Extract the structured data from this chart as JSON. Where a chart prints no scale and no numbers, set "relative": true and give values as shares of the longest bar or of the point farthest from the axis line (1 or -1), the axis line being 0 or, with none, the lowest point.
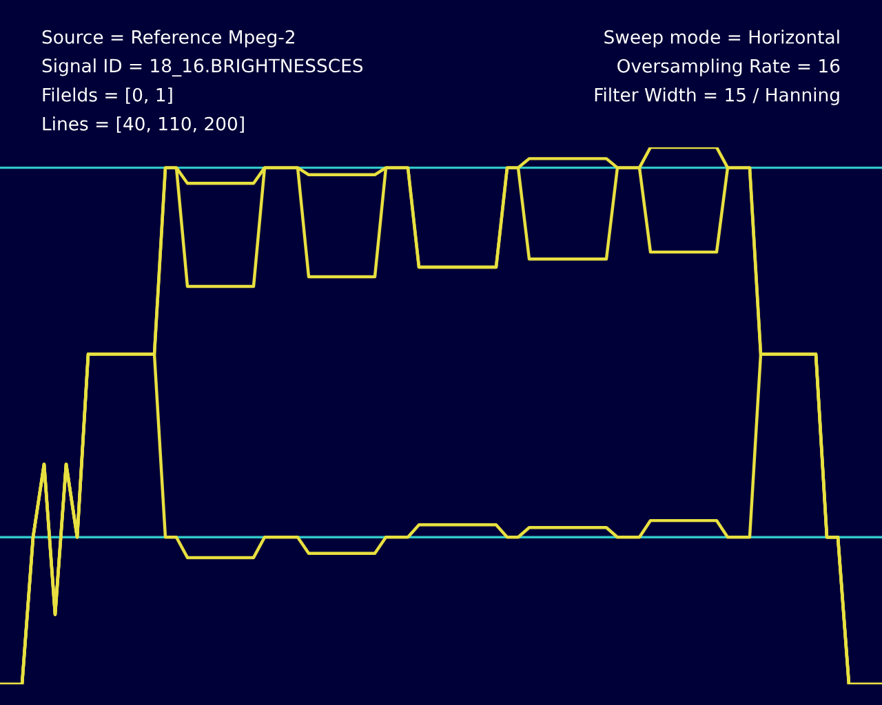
{
  "chart_data": {
    "type": "line",
    "relative": true,
    "legend": false,
    "marker": "none",
    "line_style": "solid",
    "annotations": [
      "Source = Reference Mpeg-2",
      "Signal ID = 18_16.BRIGHTNESSCES",
      "Filelds = [0, 1]",
      "Lines = [40, 110, 200]",
      "Sweep mode = Horizontal",
      "Oversampling Rate = 16",
      "Filter Width = 15 / Hanning"
    ],
    "categories": [
      null,
      null,
      null,
      null,
      null,
      null,
      null,
      null,
      null,
      null,
      null,
      null,
      null,
      null,
      null,
      null,
      null,
      null,
      null,
      null,
      null,
      null,
      null,
      null,
      null,
      null,
      null,
      null,
      null,
      null,
      null,
      null,
      null,
      null,
      null,
      null,
      null,
      null,
      null,
      null,
      null,
      null,
      null,
      null,
      null,
      null,
      null,
      null,
      null,
      null,
      null,
      null,
      null,
      null,
      null,
      null,
      null,
      null,
      null,
      null,
      null,
      null,
      null,
      null,
      null,
      null,
      null,
      null,
      null,
      null,
      null,
      null,
      null,
      null,
      null,
      null,
      null,
      null,
      null,
      null,
      null
    ],
    "ref_lines": [
      {
        "axis": "y",
        "value": 0.274,
        "color": "#30c8c8"
      },
      {
        "axis": "y",
        "value": 0.962,
        "color": "#30c8c8"
      }
    ],
    "series": [
      {
        "color": "#e8e040",
        "values": [
          0,
          0,
          0,
          0.274,
          0.41,
          0.13,
          0.41,
          0.274,
          0.615,
          0.615,
          0.615,
          0.615,
          0.615,
          0.615,
          0.615,
          0.962,
          0.962,
          0.933,
          0.933,
          0.933,
          0.933,
          0.933,
          0.933,
          0.933,
          0.962,
          0.962,
          0.962,
          0.962,
          0.949,
          0.949,
          0.949,
          0.949,
          0.949,
          0.949,
          0.949,
          0.962,
          0.962,
          0.962,
          0.777,
          0.777,
          0.777,
          0.777,
          0.777,
          0.777,
          0.777,
          0.777,
          0.962,
          0.962,
          0.979,
          0.979,
          0.979,
          0.979,
          0.979,
          0.979,
          0.979,
          0.979,
          0.962,
          0.962,
          0.962,
          1.0,
          1.0,
          1.0,
          1.0,
          1.0,
          1.0,
          1.0,
          0.962,
          0.962,
          0.962,
          0.615,
          0.615,
          0.615,
          0.615,
          0.615,
          0.615,
          0.274,
          0.274,
          0,
          0,
          0,
          0
        ]
      },
      {
        "color": "#e8e040",
        "values": [
          0,
          0,
          0,
          0.274,
          0.41,
          0.13,
          0.41,
          0.274,
          0.615,
          0.615,
          0.615,
          0.615,
          0.615,
          0.615,
          0.615,
          0.962,
          0.962,
          0.741,
          0.741,
          0.741,
          0.741,
          0.741,
          0.741,
          0.741,
          0.962,
          0.962,
          0.962,
          0.962,
          0.759,
          0.759,
          0.759,
          0.759,
          0.759,
          0.759,
          0.759,
          0.962,
          0.962,
          0.962,
          0.777,
          0.777,
          0.777,
          0.777,
          0.777,
          0.777,
          0.777,
          0.777,
          0.962,
          0.962,
          0.792,
          0.792,
          0.792,
          0.792,
          0.792,
          0.792,
          0.792,
          0.792,
          0.962,
          0.962,
          0.962,
          0.805,
          0.805,
          0.805,
          0.805,
          0.805,
          0.805,
          0.805,
          0.962,
          0.962,
          0.962,
          0.615,
          0.615,
          0.615,
          0.615,
          0.615,
          0.615,
          0.274,
          0.274,
          0,
          0,
          0,
          0
        ]
      },
      {
        "color": "#e8e040",
        "values": [
          0,
          0,
          0,
          0.274,
          0.41,
          0.13,
          0.41,
          0.274,
          0.615,
          0.615,
          0.615,
          0.615,
          0.615,
          0.615,
          0.615,
          0.274,
          0.274,
          0.236,
          0.236,
          0.236,
          0.236,
          0.236,
          0.236,
          0.236,
          0.274,
          0.274,
          0.274,
          0.274,
          0.244,
          0.244,
          0.244,
          0.244,
          0.244,
          0.244,
          0.244,
          0.274,
          0.274,
          0.274,
          0.297,
          0.297,
          0.297,
          0.297,
          0.297,
          0.297,
          0.297,
          0.297,
          0.274,
          0.274,
          0.292,
          0.292,
          0.292,
          0.292,
          0.292,
          0.292,
          0.292,
          0.292,
          0.274,
          0.274,
          0.274,
          0.305,
          0.305,
          0.305,
          0.305,
          0.305,
          0.305,
          0.305,
          0.274,
          0.274,
          0.274,
          0.615,
          0.615,
          0.615,
          0.615,
          0.615,
          0.615,
          0.274,
          0.274,
          0,
          0,
          0,
          0
        ]
      }
    ]
  }
}
